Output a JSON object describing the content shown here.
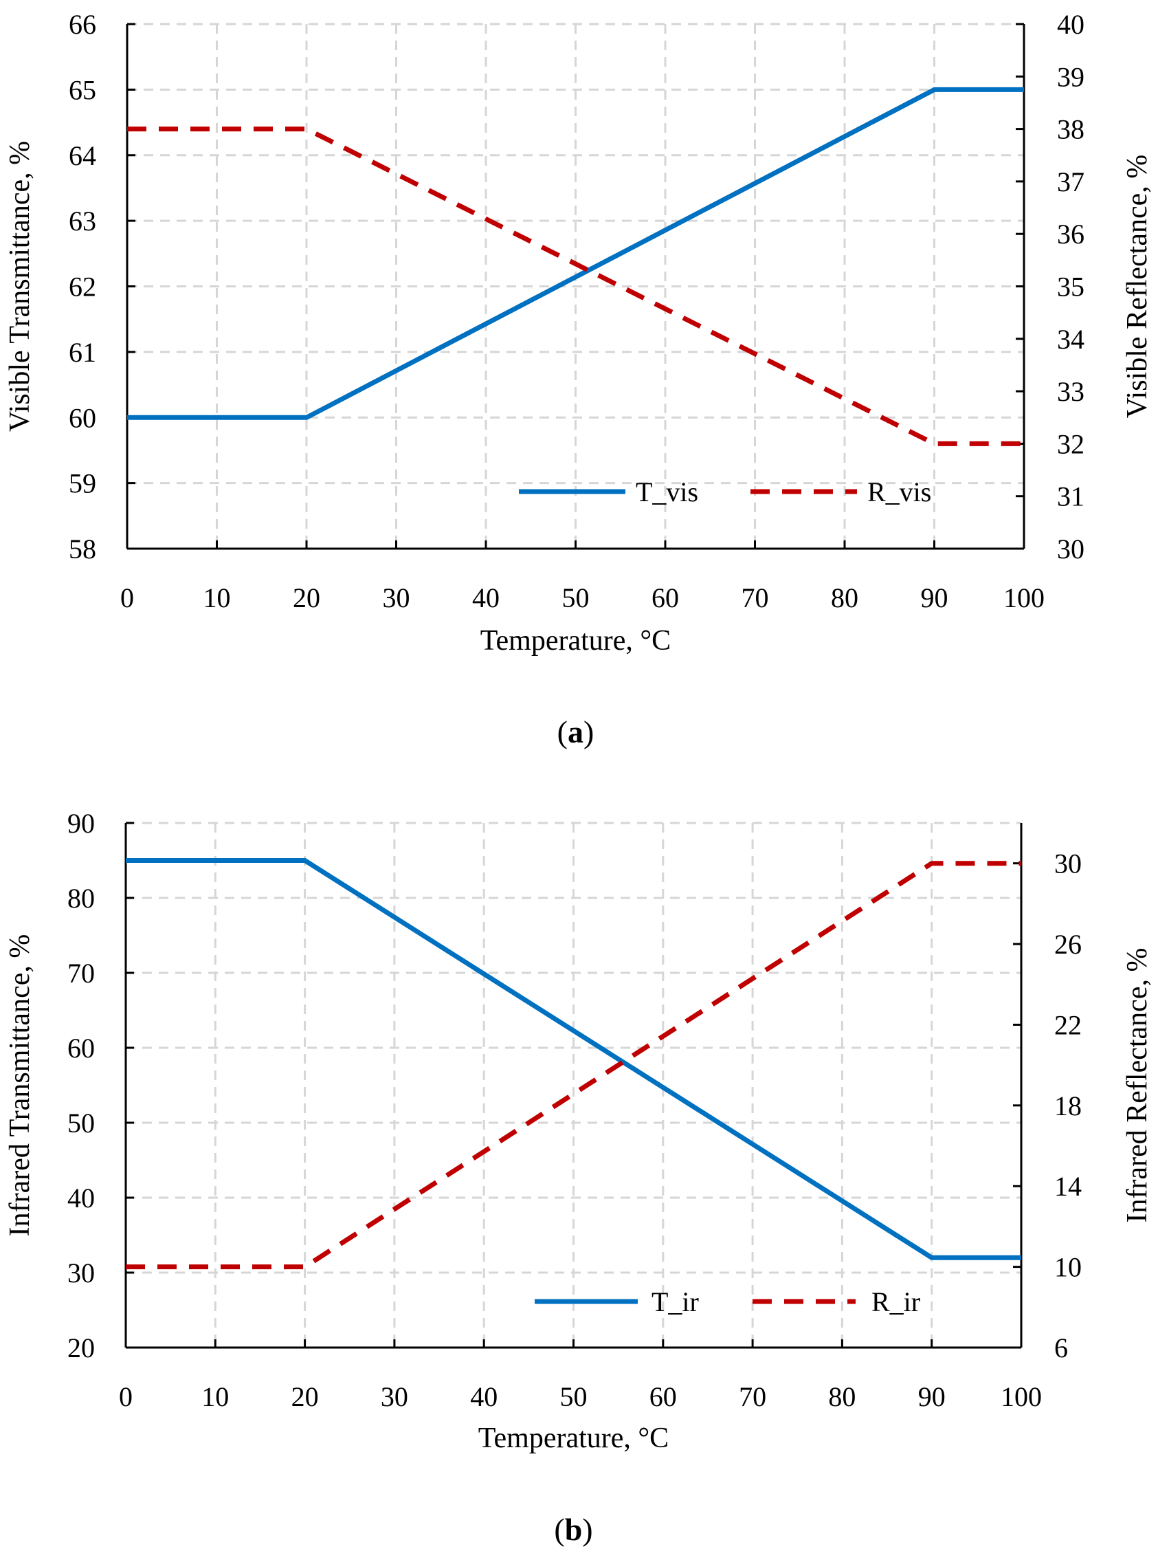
{
  "colors": {
    "solid_series": "#0070c0",
    "dashed_series": "#c00000",
    "grid": "#d6d6d6",
    "axis": "#000000"
  },
  "chart_data": [
    {
      "id": "a",
      "type": "line",
      "panel_label": "a",
      "xlabel": "Temperature, °C",
      "ylabel_left": "Visible Transmittance, %",
      "ylabel_right": "Visible Reflectance, %",
      "x_ticks": [
        0,
        10,
        20,
        30,
        40,
        50,
        60,
        70,
        80,
        90,
        100
      ],
      "y_left_ticks": [
        58,
        59,
        60,
        61,
        62,
        63,
        64,
        65,
        66
      ],
      "y_right_ticks": [
        30,
        31,
        32,
        33,
        34,
        35,
        36,
        37,
        38,
        39,
        40
      ],
      "xlim": [
        0,
        100
      ],
      "ylim_left": [
        58,
        66
      ],
      "ylim_right": [
        30,
        40
      ],
      "grid": true,
      "legend_position": "bottom-right",
      "series": [
        {
          "name": "T_vis",
          "axis": "left",
          "style": "solid",
          "x": [
            0,
            20,
            90,
            100
          ],
          "y": [
            60,
            60,
            65,
            65
          ]
        },
        {
          "name": "R_vis",
          "axis": "right",
          "style": "dashed",
          "x": [
            0,
            20,
            90,
            100
          ],
          "y": [
            38,
            38,
            32,
            32
          ]
        }
      ]
    },
    {
      "id": "b",
      "type": "line",
      "panel_label": "b",
      "xlabel": "Temperature, °C",
      "ylabel_left": "Infrared Transmittance, %",
      "ylabel_right": "Infrared Reflectance, %",
      "x_ticks": [
        0,
        10,
        20,
        30,
        40,
        50,
        60,
        70,
        80,
        90,
        100
      ],
      "y_left_ticks": [
        20,
        30,
        40,
        50,
        60,
        70,
        80,
        90
      ],
      "y_right_ticks": [
        6,
        10,
        14,
        18,
        22,
        26,
        30
      ],
      "xlim": [
        0,
        100
      ],
      "ylim_left": [
        20,
        90
      ],
      "ylim_right": [
        6,
        32
      ],
      "grid": true,
      "legend_position": "bottom-right",
      "series": [
        {
          "name": "T_ir",
          "axis": "left",
          "style": "solid",
          "x": [
            0,
            20,
            90,
            100
          ],
          "y": [
            85,
            85,
            32,
            32
          ]
        },
        {
          "name": "R_ir",
          "axis": "right",
          "style": "dashed",
          "x": [
            0,
            20,
            90,
            100
          ],
          "y": [
            10,
            10,
            30,
            30
          ]
        }
      ]
    }
  ]
}
